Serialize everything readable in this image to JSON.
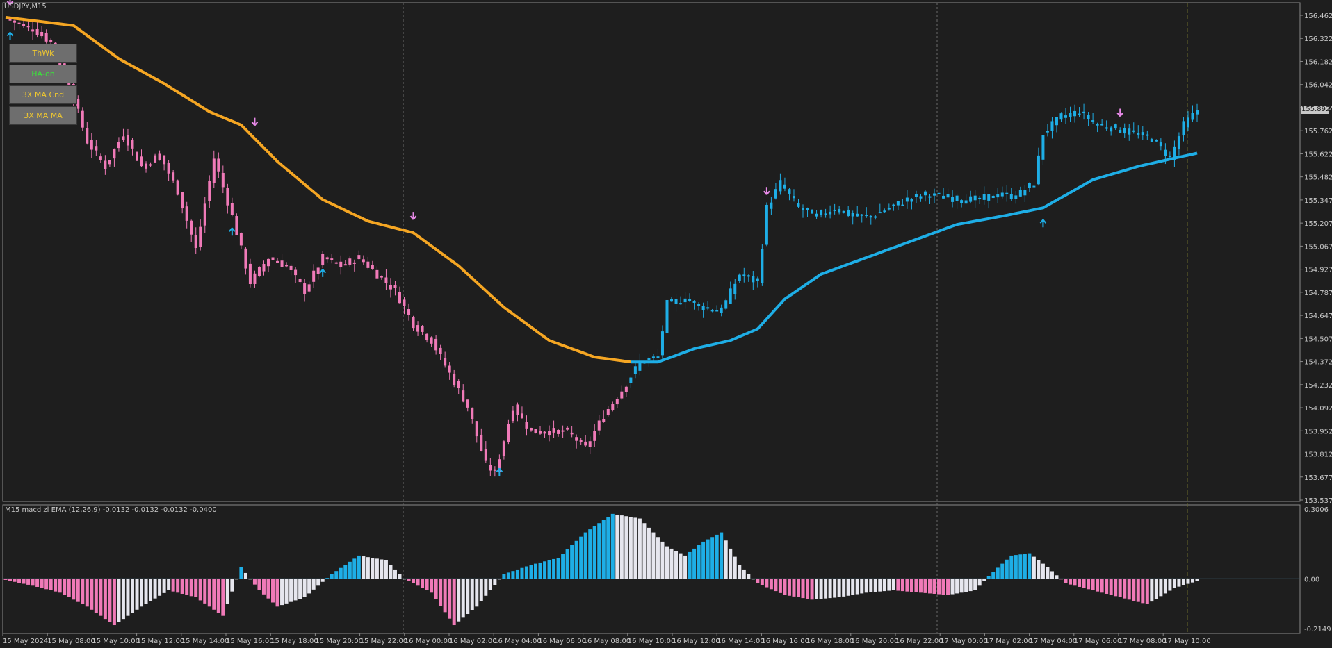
{
  "window": {
    "title": "USDJPY,M15"
  },
  "buttons": [
    {
      "label": "ThWk",
      "color": "#f0c830"
    },
    {
      "label": "HA-on",
      "color": "#3ce03c"
    },
    {
      "label": "3X MA Cnd",
      "color": "#f0c830"
    },
    {
      "label": "3X MA MA",
      "color": "#f0c830"
    }
  ],
  "price_axis": {
    "labels": [
      "156.462",
      "156.322",
      "156.182",
      "156.042",
      "155.902",
      "155.762",
      "155.622",
      "155.482",
      "155.347",
      "155.207",
      "155.067",
      "154.927",
      "154.787",
      "154.647",
      "154.507",
      "154.372",
      "154.232",
      "154.092",
      "153.952",
      "153.812",
      "153.677",
      "153.537"
    ],
    "current_price": "155.892"
  },
  "indicator": {
    "title": "M15  macd zl EMA (12,26,9)  -0.0132 -0.0132 -0.0132 -0.0400",
    "axis_labels": [
      "0.3006",
      "0.00",
      "-0.2149"
    ]
  },
  "time_axis": {
    "labels": [
      "15 May 2024",
      "15 May 08:00",
      "15 May 10:00",
      "15 May 12:00",
      "15 May 14:00",
      "15 May 16:00",
      "15 May 18:00",
      "15 May 20:00",
      "15 May 22:00",
      "16 May 00:00",
      "16 May 02:00",
      "16 May 04:00",
      "16 May 06:00",
      "16 May 08:00",
      "16 May 10:00",
      "16 May 12:00",
      "16 May 14:00",
      "16 May 16:00",
      "16 May 18:00",
      "16 May 20:00",
      "16 May 22:00",
      "17 May 00:00",
      "17 May 02:00",
      "17 May 04:00",
      "17 May 06:00",
      "17 May 08:00",
      "17 May 10:00"
    ]
  },
  "colors": {
    "background": "#1e1e1e",
    "bear": "#f07ab8",
    "bull": "#1eaee6",
    "ma_down": "#f5a623",
    "ma_up": "#1eaee6",
    "hist_neutral": "#e6e6ee",
    "grid": "#6a6a6a",
    "arrow_down": "#e88ae8"
  },
  "chart_data": {
    "type": "candlestick",
    "symbol": "USDJPY",
    "timeframe": "M15",
    "ylim": [
      153.537,
      156.462
    ],
    "close_path": [
      {
        "t": 0,
        "p": 156.44
      },
      {
        "t": 6,
        "p": 156.38
      },
      {
        "t": 10,
        "p": 156.3
      },
      {
        "t": 14,
        "p": 156.05
      },
      {
        "t": 18,
        "p": 155.7
      },
      {
        "t": 22,
        "p": 155.55
      },
      {
        "t": 26,
        "p": 155.75
      },
      {
        "t": 30,
        "p": 155.55
      },
      {
        "t": 34,
        "p": 155.62
      },
      {
        "t": 38,
        "p": 155.4
      },
      {
        "t": 42,
        "p": 155.05
      },
      {
        "t": 46,
        "p": 155.6
      },
      {
        "t": 50,
        "p": 155.25
      },
      {
        "t": 54,
        "p": 154.85
      },
      {
        "t": 58,
        "p": 155.0
      },
      {
        "t": 62,
        "p": 154.95
      },
      {
        "t": 66,
        "p": 154.8
      },
      {
        "t": 70,
        "p": 155.0
      },
      {
        "t": 74,
        "p": 154.95
      },
      {
        "t": 78,
        "p": 155.0
      },
      {
        "t": 82,
        "p": 154.9
      },
      {
        "t": 86,
        "p": 154.8
      },
      {
        "t": 90,
        "p": 154.6
      },
      {
        "t": 94,
        "p": 154.5
      },
      {
        "t": 98,
        "p": 154.3
      },
      {
        "t": 102,
        "p": 154.1
      },
      {
        "t": 106,
        "p": 153.75
      },
      {
        "t": 108,
        "p": 153.7
      },
      {
        "t": 112,
        "p": 154.1
      },
      {
        "t": 116,
        "p": 153.95
      },
      {
        "t": 120,
        "p": 153.95
      },
      {
        "t": 124,
        "p": 153.95
      },
      {
        "t": 128,
        "p": 153.85
      },
      {
        "t": 132,
        "p": 154.05
      },
      {
        "t": 136,
        "p": 154.2
      },
      {
        "t": 140,
        "p": 154.37
      },
      {
        "t": 144,
        "p": 154.4
      },
      {
        "t": 146,
        "p": 154.72
      },
      {
        "t": 150,
        "p": 154.75
      },
      {
        "t": 154,
        "p": 154.7
      },
      {
        "t": 158,
        "p": 154.68
      },
      {
        "t": 162,
        "p": 154.9
      },
      {
        "t": 166,
        "p": 154.85
      },
      {
        "t": 168,
        "p": 155.3
      },
      {
        "t": 171,
        "p": 155.45
      },
      {
        "t": 175,
        "p": 155.3
      },
      {
        "t": 179,
        "p": 155.25
      },
      {
        "t": 183,
        "p": 155.3
      },
      {
        "t": 187,
        "p": 155.25
      },
      {
        "t": 191,
        "p": 155.25
      },
      {
        "t": 195,
        "p": 155.3
      },
      {
        "t": 199,
        "p": 155.35
      },
      {
        "t": 203,
        "p": 155.38
      },
      {
        "t": 207,
        "p": 155.37
      },
      {
        "t": 211,
        "p": 155.35
      },
      {
        "t": 215,
        "p": 155.35
      },
      {
        "t": 219,
        "p": 155.38
      },
      {
        "t": 223,
        "p": 155.37
      },
      {
        "t": 227,
        "p": 155.45
      },
      {
        "t": 229,
        "p": 155.75
      },
      {
        "t": 233,
        "p": 155.85
      },
      {
        "t": 237,
        "p": 155.88
      },
      {
        "t": 241,
        "p": 155.8
      },
      {
        "t": 245,
        "p": 155.78
      },
      {
        "t": 249,
        "p": 155.75
      },
      {
        "t": 253,
        "p": 155.72
      },
      {
        "t": 257,
        "p": 155.6
      },
      {
        "t": 260,
        "p": 155.8
      },
      {
        "t": 263,
        "p": 155.89
      }
    ],
    "moving_average": [
      {
        "t": 0,
        "p": 156.45
      },
      {
        "t": 15,
        "p": 156.4
      },
      {
        "t": 25,
        "p": 156.2
      },
      {
        "t": 35,
        "p": 156.05
      },
      {
        "t": 45,
        "p": 155.88
      },
      {
        "t": 52,
        "p": 155.8
      },
      {
        "t": 60,
        "p": 155.58
      },
      {
        "t": 70,
        "p": 155.35
      },
      {
        "t": 80,
        "p": 155.22
      },
      {
        "t": 90,
        "p": 155.15
      },
      {
        "t": 100,
        "p": 154.95
      },
      {
        "t": 110,
        "p": 154.7
      },
      {
        "t": 120,
        "p": 154.5
      },
      {
        "t": 130,
        "p": 154.4
      },
      {
        "t": 138,
        "p": 154.37
      },
      {
        "t": 144,
        "p": 154.37
      },
      {
        "t": 152,
        "p": 154.45
      },
      {
        "t": 160,
        "p": 154.5
      },
      {
        "t": 166,
        "p": 154.57
      },
      {
        "t": 172,
        "p": 154.75
      },
      {
        "t": 180,
        "p": 154.9
      },
      {
        "t": 190,
        "p": 155.0
      },
      {
        "t": 200,
        "p": 155.1
      },
      {
        "t": 210,
        "p": 155.2
      },
      {
        "t": 220,
        "p": 155.25
      },
      {
        "t": 229,
        "p": 155.3
      },
      {
        "t": 240,
        "p": 155.47
      },
      {
        "t": 250,
        "p": 155.55
      },
      {
        "t": 258,
        "p": 155.6
      },
      {
        "t": 263,
        "p": 155.63
      }
    ],
    "ma_turn_index": 138,
    "up_arrows": [
      1,
      50,
      70,
      109,
      229
    ],
    "down_arrows": [
      1,
      55,
      90,
      168,
      246
    ],
    "macd": {
      "ylim": [
        -0.2149,
        0.3006
      ],
      "points": [
        {
          "t": 0,
          "v": -0.005
        },
        {
          "t": 6,
          "v": -0.03
        },
        {
          "t": 12,
          "v": -0.06
        },
        {
          "t": 18,
          "v": -0.12
        },
        {
          "t": 24,
          "v": -0.2
        },
        {
          "t": 30,
          "v": -0.12
        },
        {
          "t": 36,
          "v": -0.05
        },
        {
          "t": 42,
          "v": -0.08
        },
        {
          "t": 48,
          "v": -0.16
        },
        {
          "t": 52,
          "v": 0.05
        },
        {
          "t": 56,
          "v": -0.05
        },
        {
          "t": 60,
          "v": -0.12
        },
        {
          "t": 66,
          "v": -0.08
        },
        {
          "t": 72,
          "v": 0.02
        },
        {
          "t": 78,
          "v": 0.1
        },
        {
          "t": 84,
          "v": 0.08
        },
        {
          "t": 88,
          "v": 0.0
        },
        {
          "t": 94,
          "v": -0.06
        },
        {
          "t": 99,
          "v": -0.2
        },
        {
          "t": 104,
          "v": -0.12
        },
        {
          "t": 110,
          "v": 0.02
        },
        {
          "t": 116,
          "v": 0.06
        },
        {
          "t": 122,
          "v": 0.09
        },
        {
          "t": 128,
          "v": 0.2
        },
        {
          "t": 134,
          "v": 0.28
        },
        {
          "t": 140,
          "v": 0.26
        },
        {
          "t": 146,
          "v": 0.14
        },
        {
          "t": 150,
          "v": 0.1
        },
        {
          "t": 154,
          "v": 0.16
        },
        {
          "t": 158,
          "v": 0.2
        },
        {
          "t": 162,
          "v": 0.06
        },
        {
          "t": 166,
          "v": -0.02
        },
        {
          "t": 172,
          "v": -0.07
        },
        {
          "t": 178,
          "v": -0.09
        },
        {
          "t": 184,
          "v": -0.08
        },
        {
          "t": 190,
          "v": -0.06
        },
        {
          "t": 196,
          "v": -0.05
        },
        {
          "t": 202,
          "v": -0.06
        },
        {
          "t": 208,
          "v": -0.07
        },
        {
          "t": 214,
          "v": -0.05
        },
        {
          "t": 218,
          "v": 0.03
        },
        {
          "t": 222,
          "v": 0.1
        },
        {
          "t": 226,
          "v": 0.11
        },
        {
          "t": 230,
          "v": 0.05
        },
        {
          "t": 234,
          "v": -0.02
        },
        {
          "t": 240,
          "v": -0.05
        },
        {
          "t": 246,
          "v": -0.08
        },
        {
          "t": 252,
          "v": -0.11
        },
        {
          "t": 258,
          "v": -0.04
        },
        {
          "t": 263,
          "v": -0.01
        }
      ]
    }
  }
}
